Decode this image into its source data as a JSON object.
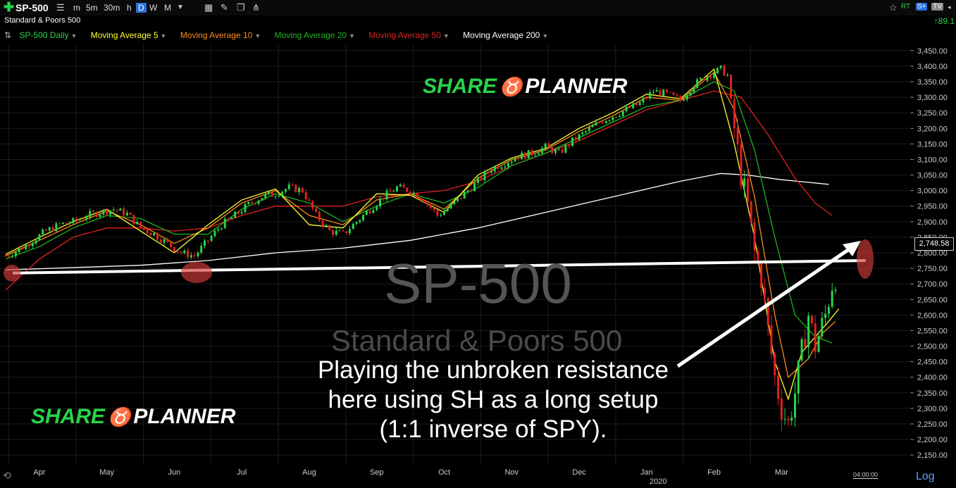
{
  "topbar": {
    "symbol": "SP-500",
    "timeframes": [
      "m",
      "5m",
      "30m",
      "h",
      "D",
      "W",
      "M"
    ],
    "selected_timeframe": "D",
    "rt": "RT",
    "badge_s": "S+",
    "badge_tv": "TV"
  },
  "subtitle": "Standard & Poors 500",
  "last_change": "89.1",
  "legend": [
    {
      "label": "SP-500 Daily",
      "color": "#27d44a"
    },
    {
      "label": "Moving Average 5",
      "color": "#ffff33"
    },
    {
      "label": "Moving Average 10",
      "color": "#ff8c1a"
    },
    {
      "label": "Moving Average 20",
      "color": "#1fb31f"
    },
    {
      "label": "Moving Average 50",
      "color": "#e02020"
    },
    {
      "label": "Moving Average 200",
      "color": "#ffffff"
    }
  ],
  "watermark": {
    "symbol": "SP-500",
    "name": "Standard & Poors 500"
  },
  "logo": {
    "left": "SHARE",
    "right": "PLANNER"
  },
  "annotation": {
    "lines": [
      "Playing the unbroken resistance",
      "here using SH as a long setup",
      "(1:1 inverse of SPY)."
    ]
  },
  "price_label": "2,748.58",
  "log_label": "Log",
  "time_label": "04:00:00",
  "year_label": "2020",
  "chart_data": {
    "type": "line",
    "title": "SP-500 Daily",
    "x_labels": [
      "Apr",
      "May",
      "Jun",
      "Jul",
      "Aug",
      "Sep",
      "Oct",
      "Nov",
      "Dec",
      "Jan",
      "Feb",
      "Mar"
    ],
    "y_ticks": [
      2150,
      2200,
      2250,
      2300,
      2350,
      2400,
      2450,
      2500,
      2550,
      2600,
      2650,
      2700,
      2750,
      2800,
      2850,
      2900,
      2950,
      3000,
      3050,
      3100,
      3150,
      3200,
      3250,
      3300,
      3350,
      3400,
      3450
    ],
    "y_tick_labels": [
      "2,150.00",
      "2,200.00",
      "2,250.00",
      "2,300.00",
      "2,350.00",
      "2,400.00",
      "2,450.00",
      "2,500.00",
      "2,550.00",
      "2,600.00",
      "2,650.00",
      "2,700.00",
      "2,750.00",
      "2,800.00",
      "2,850.00",
      "2,900.00",
      "2,950.00",
      "3,000.00",
      "3,050.00",
      "3,100.00",
      "3,150.00",
      "3,200.00",
      "3,250.00",
      "3,300.00",
      "3,350.00",
      "3,400.00",
      "3,450.00"
    ],
    "ylim": [
      2130,
      3470
    ],
    "month_positions": [
      0.5,
      1.5,
      2.5,
      3.5,
      4.5,
      5.5,
      6.5,
      7.5,
      8.5,
      9.5,
      10.5,
      11.5
    ],
    "price": [
      [
        0.0,
        2790
      ],
      [
        0.2,
        2810
      ],
      [
        0.4,
        2840
      ],
      [
        0.6,
        2870
      ],
      [
        0.8,
        2890
      ],
      [
        1.0,
        2900
      ],
      [
        1.2,
        2920
      ],
      [
        1.4,
        2930
      ],
      [
        1.6,
        2940
      ],
      [
        1.8,
        2925
      ],
      [
        2.0,
        2880
      ],
      [
        2.2,
        2860
      ],
      [
        2.4,
        2830
      ],
      [
        2.6,
        2800
      ],
      [
        2.8,
        2790
      ],
      [
        3.0,
        2840
      ],
      [
        3.2,
        2890
      ],
      [
        3.4,
        2920
      ],
      [
        3.6,
        2955
      ],
      [
        3.8,
        2980
      ],
      [
        4.0,
        2990
      ],
      [
        4.2,
        3010
      ],
      [
        4.4,
        3000
      ],
      [
        4.6,
        2920
      ],
      [
        4.8,
        2870
      ],
      [
        5.0,
        2860
      ],
      [
        5.2,
        2900
      ],
      [
        5.4,
        2940
      ],
      [
        5.6,
        2980
      ],
      [
        5.8,
        3010
      ],
      [
        6.0,
        3000
      ],
      [
        6.2,
        2970
      ],
      [
        6.4,
        2920
      ],
      [
        6.6,
        2950
      ],
      [
        6.8,
        2990
      ],
      [
        7.0,
        3030
      ],
      [
        7.2,
        3070
      ],
      [
        7.4,
        3090
      ],
      [
        7.6,
        3110
      ],
      [
        7.8,
        3120
      ],
      [
        8.0,
        3140
      ],
      [
        8.2,
        3120
      ],
      [
        8.4,
        3160
      ],
      [
        8.6,
        3190
      ],
      [
        8.8,
        3220
      ],
      [
        9.0,
        3240
      ],
      [
        9.2,
        3260
      ],
      [
        9.4,
        3280
      ],
      [
        9.6,
        3320
      ],
      [
        9.8,
        3310
      ],
      [
        10.0,
        3290
      ],
      [
        10.2,
        3340
      ],
      [
        10.4,
        3370
      ],
      [
        10.6,
        3390
      ],
      [
        10.7,
        3370
      ],
      [
        10.8,
        3200
      ],
      [
        10.9,
        3050
      ],
      [
        11.0,
        2950
      ],
      [
        11.1,
        2800
      ],
      [
        11.2,
        2720
      ],
      [
        11.3,
        2550
      ],
      [
        11.4,
        2400
      ],
      [
        11.5,
        2300
      ],
      [
        11.6,
        2250
      ],
      [
        11.7,
        2350
      ],
      [
        11.8,
        2480
      ],
      [
        11.9,
        2600
      ],
      [
        12.0,
        2500
      ],
      [
        12.15,
        2600
      ],
      [
        12.25,
        2700
      ],
      [
        12.35,
        2748
      ]
    ],
    "series": [
      {
        "name": "Moving Average 200",
        "color": "#ffffff",
        "values": [
          [
            0.0,
            2745
          ],
          [
            2.0,
            2760
          ],
          [
            3.0,
            2775
          ],
          [
            4.0,
            2800
          ],
          [
            5.0,
            2815
          ],
          [
            6.0,
            2840
          ],
          [
            7.0,
            2880
          ],
          [
            8.0,
            2930
          ],
          [
            9.0,
            2980
          ],
          [
            10.0,
            3030
          ],
          [
            10.6,
            3055
          ],
          [
            11.0,
            3050
          ],
          [
            11.5,
            3035
          ],
          [
            12.2,
            3020
          ]
        ]
      },
      {
        "name": "Moving Average 50",
        "color": "#e02020",
        "values": [
          [
            0.0,
            2680
          ],
          [
            0.5,
            2780
          ],
          [
            1.0,
            2850
          ],
          [
            1.5,
            2880
          ],
          [
            2.0,
            2880
          ],
          [
            2.5,
            2870
          ],
          [
            3.0,
            2880
          ],
          [
            3.5,
            2920
          ],
          [
            4.0,
            2950
          ],
          [
            4.5,
            2950
          ],
          [
            5.0,
            2950
          ],
          [
            5.5,
            2980
          ],
          [
            6.0,
            2990
          ],
          [
            6.5,
            3000
          ],
          [
            7.0,
            3030
          ],
          [
            7.5,
            3080
          ],
          [
            8.0,
            3120
          ],
          [
            8.5,
            3160
          ],
          [
            9.0,
            3210
          ],
          [
            9.5,
            3260
          ],
          [
            10.0,
            3290
          ],
          [
            10.5,
            3320
          ],
          [
            10.9,
            3300
          ],
          [
            11.3,
            3180
          ],
          [
            11.7,
            3040
          ],
          [
            12.0,
            2960
          ],
          [
            12.25,
            2920
          ]
        ]
      },
      {
        "name": "Moving Average 20",
        "color": "#1fb31f",
        "values": [
          [
            0.0,
            2780
          ],
          [
            0.5,
            2820
          ],
          [
            1.0,
            2880
          ],
          [
            1.5,
            2920
          ],
          [
            2.0,
            2910
          ],
          [
            2.5,
            2860
          ],
          [
            3.0,
            2860
          ],
          [
            3.5,
            2940
          ],
          [
            4.0,
            2990
          ],
          [
            4.5,
            2960
          ],
          [
            5.0,
            2900
          ],
          [
            5.5,
            2950
          ],
          [
            6.0,
            2990
          ],
          [
            6.5,
            2960
          ],
          [
            7.0,
            3010
          ],
          [
            7.5,
            3080
          ],
          [
            8.0,
            3120
          ],
          [
            8.5,
            3170
          ],
          [
            9.0,
            3220
          ],
          [
            9.5,
            3270
          ],
          [
            10.0,
            3290
          ],
          [
            10.5,
            3350
          ],
          [
            10.8,
            3320
          ],
          [
            11.1,
            3130
          ],
          [
            11.4,
            2850
          ],
          [
            11.7,
            2600
          ],
          [
            12.0,
            2530
          ],
          [
            12.25,
            2510
          ]
        ]
      },
      {
        "name": "Moving Average 10",
        "color": "#ff8c1a",
        "values": [
          [
            0.0,
            2790
          ],
          [
            0.5,
            2840
          ],
          [
            1.0,
            2890
          ],
          [
            1.5,
            2935
          ],
          [
            2.0,
            2890
          ],
          [
            2.5,
            2830
          ],
          [
            3.0,
            2880
          ],
          [
            3.5,
            2960
          ],
          [
            4.0,
            3000
          ],
          [
            4.5,
            2920
          ],
          [
            5.0,
            2890
          ],
          [
            5.5,
            2970
          ],
          [
            6.0,
            2990
          ],
          [
            6.5,
            2940
          ],
          [
            7.0,
            3040
          ],
          [
            7.5,
            3100
          ],
          [
            8.0,
            3130
          ],
          [
            8.5,
            3190
          ],
          [
            9.0,
            3240
          ],
          [
            9.5,
            3300
          ],
          [
            10.0,
            3290
          ],
          [
            10.5,
            3380
          ],
          [
            10.8,
            3260
          ],
          [
            11.1,
            2980
          ],
          [
            11.4,
            2600
          ],
          [
            11.6,
            2400
          ],
          [
            11.9,
            2460
          ],
          [
            12.1,
            2540
          ],
          [
            12.3,
            2580
          ]
        ]
      },
      {
        "name": "Moving Average 5",
        "color": "#ffff33",
        "values": [
          [
            0.0,
            2795
          ],
          [
            0.5,
            2850
          ],
          [
            1.0,
            2900
          ],
          [
            1.5,
            2940
          ],
          [
            2.0,
            2870
          ],
          [
            2.5,
            2800
          ],
          [
            3.0,
            2890
          ],
          [
            3.5,
            2970
          ],
          [
            4.0,
            3005
          ],
          [
            4.5,
            2890
          ],
          [
            5.0,
            2880
          ],
          [
            5.5,
            2990
          ],
          [
            6.0,
            2985
          ],
          [
            6.5,
            2930
          ],
          [
            7.0,
            3050
          ],
          [
            7.5,
            3105
          ],
          [
            8.0,
            3135
          ],
          [
            8.5,
            3200
          ],
          [
            9.0,
            3250
          ],
          [
            9.5,
            3310
          ],
          [
            10.0,
            3295
          ],
          [
            10.5,
            3390
          ],
          [
            10.8,
            3150
          ],
          [
            11.1,
            2850
          ],
          [
            11.4,
            2450
          ],
          [
            11.6,
            2330
          ],
          [
            11.8,
            2480
          ],
          [
            12.0,
            2530
          ],
          [
            12.2,
            2580
          ],
          [
            12.35,
            2620
          ]
        ]
      }
    ],
    "resistance_line": [
      [
        0.0,
        2735
      ],
      [
        12.6,
        2775
      ]
    ],
    "grid": true
  }
}
